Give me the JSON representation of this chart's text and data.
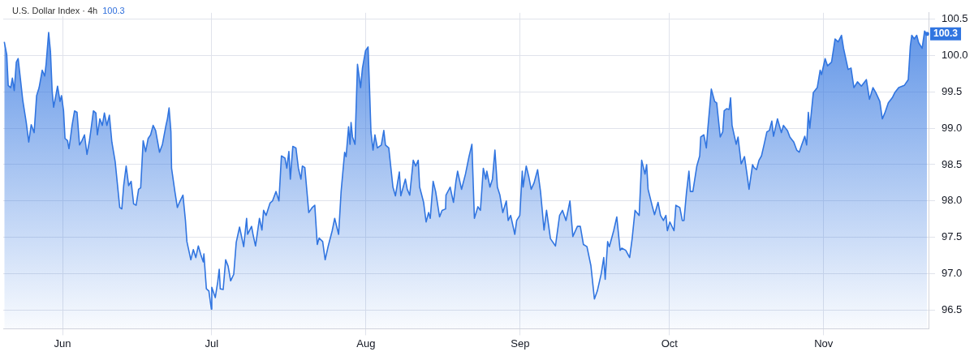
{
  "chart_data": {
    "type": "area",
    "title": "U.S. Dollar Index · 4h",
    "annotations": [
      "100.3",
      {
        "text": "100.3",
        "x": "--11-21T19:00",
        "y": 100.3
      }
    ],
    "series": [
      {
        "color": "#3175e0",
        "x": [
          "--05-20T07:00",
          "--05-20T19:00",
          "--05-21T02:00",
          "--05-21T14:00",
          "--05-21T22:00",
          "--05-22T07:00",
          "--05-22T17:00",
          "--05-23T02:00",
          "--05-23T14:00",
          "--05-24T00:00",
          "--05-24T17:00",
          "--05-25T05:00",
          "--05-25T17:00",
          "--05-26T07:00",
          "--05-26T19:00",
          "--05-27T07:00",
          "--05-27T22:00",
          "--05-28T10:00",
          "--05-28T17:00",
          "--05-29T05:00",
          "--05-29T14:00",
          "--05-29T22:00",
          "--05-30T05:00",
          "--05-30T17:00",
          "--05-31T00:00",
          "--05-31T12:00",
          "--05-31T19:00",
          "--06-01T05:00",
          "--06-01T12:00",
          "--06-02T00:00",
          "--06-02T07:00",
          "--06-02T14:00",
          "--06-02T22:00",
          "--06-03T10:00",
          "--06-03T22:00",
          "--06-04T10:00",
          "--06-04T22:00",
          "--06-05T10:00",
          "--06-05T22:00",
          "--06-06T10:00",
          "--06-06T19:00",
          "--06-07T05:00",
          "--06-07T17:00",
          "--06-08T00:00",
          "--06-08T12:00",
          "--06-09T00:00",
          "--06-09T10:00",
          "--06-09T22:00",
          "--06-10T10:00",
          "--06-10T22:00",
          "--06-11T14:00",
          "--06-12T12:00",
          "--06-12T22:00",
          "--06-13T07:00",
          "--06-13T19:00",
          "--06-14T07:00",
          "--06-14T19:00",
          "--06-15T07:00",
          "--06-15T19:00",
          "--06-16T07:00",
          "--06-16T17:00",
          "--06-17T05:00",
          "--06-17T17:00",
          "--06-18T05:00",
          "--06-18T17:00",
          "--06-19T05:00",
          "--06-19T17:00",
          "--06-20T12:00",
          "--06-21T02:00",
          "--06-21T19:00",
          "--06-22T02:00",
          "--06-22T10:00",
          "--06-22T19:00",
          "--06-22T22:00",
          "--06-23T14:00",
          "--06-24T02:00",
          "--06-24T12:00",
          "--06-25T05:00",
          "--06-25T17:00",
          "--06-26T00:00",
          "--06-26T19:00",
          "--06-27T07:00",
          "--06-27T19:00",
          "--06-28T07:00",
          "--06-28T19:00",
          "--06-29T07:00",
          "--06-29T10:00",
          "--06-29T22:00",
          "--06-30T10:00",
          "--06-30T22:00",
          "--07-01T00:00",
          "--07-01T17:00",
          "--07-02T05:00",
          "--07-02T12:00",
          "--07-02T17:00",
          "--07-03T07:00",
          "--07-03T19:00",
          "--07-04T07:00",
          "--07-04T19:00",
          "--07-05T10:00",
          "--07-05T22:00",
          "--07-06T14:00",
          "--07-07T10:00",
          "--07-08T00:00",
          "--07-08T05:00",
          "--07-09T00:00",
          "--07-09T07:00",
          "--07-09T19:00",
          "--07-10T14:00",
          "--07-11T02:00",
          "--07-11T10:00",
          "--07-11T22:00",
          "--07-12T17:00",
          "--07-13T05:00",
          "--07-13T22:00",
          "--07-14T12:00",
          "--07-15T00:00",
          "--07-15T17:00",
          "--07-16T02:00",
          "--07-16T12:00",
          "--07-16T19:00",
          "--07-17T07:00",
          "--07-17T22:00",
          "--07-18T10:00",
          "--07-18T22:00",
          "--07-19T05:00",
          "--07-19T17:00",
          "--07-20T12:00",
          "--07-21T05:00",
          "--07-21T17:00",
          "--07-22T05:00",
          "--07-22T14:00",
          "--07-23T07:00",
          "--07-23T19:00",
          "--07-24T10:00",
          "--07-25T05:00",
          "--07-25T17:00",
          "--07-26T12:00",
          "--07-27T00:00",
          "--07-27T17:00",
          "--07-28T00:00",
          "--07-28T12:00",
          "--07-28T19:00",
          "--07-29T00:00",
          "--07-29T07:00",
          "--07-29T19:00",
          "--07-30T07:00",
          "--07-30T22:00",
          "--07-31T07:00",
          "--07-31T22:00",
          "--08-01T10:00",
          "--08-01T17:00",
          "--08-02T00:00",
          "--08-02T10:00",
          "--08-02T19:00",
          "--08-03T07:00",
          "--08-04T02:00",
          "--08-04T14:00",
          "--08-04T22:00",
          "--08-05T14:00",
          "--08-06T10:00",
          "--08-06T22:00",
          "--08-07T17:00",
          "--08-08T00:00",
          "--08-08T22:00",
          "--08-09T07:00",
          "--08-09T19:00",
          "--08-10T12:00",
          "--08-11T00:00",
          "--08-11T12:00",
          "--08-11T19:00",
          "--08-12T14:00",
          "--08-13T02:00",
          "--08-13T14:00",
          "--08-13T22:00",
          "--08-14T12:00",
          "--08-15T00:00",
          "--08-15T19:00",
          "--08-16T07:00",
          "--08-17T00:00",
          "--08-17T02:00",
          "--08-17T22:00",
          "--08-18T14:00",
          "--08-19T02:00",
          "--08-19T10:00",
          "--08-20T05:00",
          "--08-21T00:00",
          "--08-21T17:00",
          "--08-22T07:00",
          "--08-22T19:00",
          "--08-23T12:00",
          "--08-24T00:00",
          "--08-24T14:00",
          "--08-25T02:00",
          "--08-25T07:00",
          "--08-25T22:00",
          "--08-26T10:00",
          "--08-26T22:00",
          "--08-27T10:00",
          "--08-27T22:00",
          "--08-28T12:00",
          "--08-29T05:00",
          "--08-29T14:00",
          "--08-30T02:00",
          "--08-30T22:00",
          "--08-31T07:00",
          "--08-31T22:00",
          "--09-01T10:00",
          "--09-01T14:00",
          "--09-02T05:00",
          "--09-02T17:00",
          "--09-03T05:00",
          "--09-03T19:00",
          "--09-04T12:00",
          "--09-05T02:00",
          "--09-05T19:00",
          "--09-06T07:00",
          "--09-07T02:00",
          "--09-08T02:00",
          "--09-08T22:00",
          "--09-09T12:00",
          "--09-10T05:00",
          "--09-11T00:00",
          "--09-11T14:00",
          "--09-12T12:00",
          "--09-13T02:00",
          "--09-13T17:00",
          "--09-14T10:00",
          "--09-15T05:00",
          "--09-15T22:00",
          "--09-16T12:00",
          "--09-17T07:00",
          "--09-17T19:00",
          "--09-18T02:00",
          "--09-18T14:00",
          "--09-18T22:00",
          "--09-19T19:00",
          "--09-20T10:00",
          "--09-21T02:00",
          "--09-21T10:00",
          "--09-22T05:00",
          "--09-23T00:00",
          "--09-23T12:00",
          "--09-24T02:00",
          "--09-24T22:00",
          "--09-25T10:00",
          "--09-26T02:00",
          "--09-26T10:00",
          "--09-26T17:00",
          "--09-27T12:00",
          "--09-28T00:00",
          "--09-28T17:00",
          "--09-29T05:00",
          "--09-29T19:00",
          "--09-30T07:00",
          "--09-30T14:00",
          "--10-01T02:00",
          "--10-01T22:00",
          "--10-02T07:00",
          "--10-03T02:00",
          "--10-03T14:00",
          "--10-03T22:00",
          "--10-04T10:00",
          "--10-04T22:00",
          "--10-05T05:00",
          "--10-05T17:00",
          "--10-06T12:00",
          "--10-07T02:00",
          "--10-07T07:00",
          "--10-07T22:00",
          "--10-08T10:00",
          "--10-08T17:00",
          "--10-09T10:00",
          "--10-10T02:00",
          "--10-10T12:00",
          "--10-11T05:00",
          "--10-11T17:00",
          "--10-12T00:00",
          "--10-12T12:00",
          "--10-13T00:00",
          "--10-13T07:00",
          "--10-13T14:00",
          "--10-14T10:00",
          "--10-14T19:00",
          "--10-15T10:00",
          "--10-16T02:00",
          "--10-16T14:00",
          "--10-17T00:00",
          "--10-17T17:00",
          "--10-18T00:00",
          "--10-18T12:00",
          "--10-19T00:00",
          "--10-19T12:00",
          "--10-20T00:00",
          "--10-20T14:00",
          "--10-21T02:00",
          "--10-21T14:00",
          "--10-21T22:00",
          "--10-22T17:00",
          "--10-23T12:00",
          "--10-23T22:00",
          "--10-24T17:00",
          "--10-25T05:00",
          "--10-26T00:00",
          "--10-26T14:00",
          "--10-27T02:00",
          "--10-27T14:00",
          "--10-28T05:00",
          "--10-28T14:00",
          "--10-28T22:00",
          "--10-29T05:00",
          "--10-29T22:00",
          "--10-30T17:00",
          "--10-31T07:00",
          "--10-31T14:00",
          "--11-01T07:00",
          "--11-01T19:00",
          "--11-02T14:00",
          "--11-03T07:00",
          "--11-03T22:00",
          "--11-04T14:00",
          "--11-05T00:00",
          "--11-05T22:00",
          "--11-06T12:00",
          "--11-07T02:00",
          "--11-07T19:00",
          "--11-08T14:00",
          "--11-09T14:00",
          "--11-10T05:00",
          "--11-10T22:00",
          "--11-11T12:00",
          "--11-12T07:00",
          "--11-12T19:00",
          "--11-13T07:00",
          "--11-14T00:00",
          "--11-14T19:00",
          "--11-15T07:00",
          "--11-16T02:00",
          "--11-17T05:00",
          "--11-18T00:00",
          "--11-18T10:00",
          "--11-18T17:00",
          "--11-19T05:00",
          "--11-19T17:00",
          "--11-20T02:00",
          "--11-20T19:00",
          "--11-21T07:00",
          "--11-21T19:00"
        ],
        "values": [
          100.19,
          100.01,
          99.59,
          99.56,
          99.69,
          99.52,
          99.91,
          99.96,
          99.65,
          99.39,
          99.08,
          98.81,
          99.05,
          98.94,
          99.45,
          99.56,
          99.8,
          99.72,
          99.89,
          100.32,
          100.05,
          99.51,
          99.29,
          99.47,
          99.58,
          99.37,
          99.45,
          99.24,
          98.86,
          98.83,
          98.72,
          98.86,
          99.04,
          99.24,
          99.22,
          98.77,
          98.83,
          98.91,
          98.64,
          98.83,
          99.02,
          99.24,
          99.21,
          98.91,
          99.13,
          99.04,
          99.21,
          99.04,
          99.18,
          98.81,
          98.54,
          97.91,
          97.89,
          98.21,
          98.48,
          98.21,
          98.27,
          97.96,
          97.94,
          98.16,
          98.18,
          98.83,
          98.68,
          98.86,
          98.91,
          99.04,
          98.97,
          98.67,
          98.78,
          99.04,
          99.13,
          99.28,
          98.95,
          98.45,
          98.13,
          97.91,
          97.98,
          98.08,
          97.73,
          97.44,
          97.19,
          97.33,
          97.22,
          97.38,
          97.26,
          97.16,
          97.27,
          96.79,
          96.76,
          96.51,
          96.81,
          96.67,
          96.89,
          97.06,
          96.79,
          96.78,
          97.19,
          97.1,
          96.9,
          96.99,
          97.43,
          97.64,
          97.37,
          97.76,
          97.54,
          97.65,
          97.54,
          97.38,
          97.76,
          97.6,
          97.87,
          97.8,
          97.97,
          98.0,
          98.13,
          98.0,
          98.62,
          98.59,
          98.45,
          98.68,
          98.3,
          98.75,
          98.73,
          98.45,
          98.3,
          98.48,
          98.46,
          97.84,
          97.91,
          97.94,
          97.4,
          97.49,
          97.44,
          97.19,
          97.38,
          97.59,
          97.76,
          97.54,
          98.13,
          98.67,
          98.61,
          99.02,
          98.78,
          99.08,
          98.88,
          98.78,
          99.88,
          99.56,
          99.83,
          100.07,
          100.12,
          99.56,
          98.95,
          98.7,
          98.91,
          98.73,
          98.77,
          98.97,
          98.77,
          98.73,
          98.19,
          98.07,
          98.4,
          98.07,
          98.3,
          98.16,
          98.08,
          98.56,
          98.48,
          98.56,
          98.19,
          97.98,
          97.71,
          97.84,
          97.76,
          98.27,
          98.13,
          97.78,
          97.87,
          97.89,
          98.08,
          98.19,
          97.98,
          98.27,
          98.41,
          98.16,
          98.37,
          98.61,
          98.78,
          97.76,
          97.92,
          97.87,
          98.45,
          98.3,
          98.41,
          98.19,
          98.3,
          98.7,
          98.19,
          98.08,
          97.84,
          98.0,
          97.73,
          97.8,
          97.54,
          97.73,
          97.8,
          98.41,
          98.19,
          98.48,
          98.34,
          98.16,
          98.25,
          98.43,
          98.13,
          97.6,
          97.87,
          97.48,
          97.38,
          97.8,
          97.87,
          97.73,
          98.0,
          97.51,
          97.65,
          97.65,
          97.4,
          97.37,
          97.11,
          96.65,
          96.76,
          97.0,
          97.22,
          96.92,
          97.44,
          97.37,
          97.59,
          97.78,
          97.32,
          97.35,
          97.32,
          97.22,
          97.48,
          97.87,
          97.8,
          98.56,
          98.37,
          98.5,
          98.16,
          97.94,
          97.81,
          97.98,
          97.8,
          97.73,
          97.8,
          97.59,
          97.71,
          97.59,
          97.94,
          97.91,
          97.73,
          97.73,
          98.11,
          98.41,
          98.13,
          98.13,
          98.48,
          98.62,
          98.88,
          98.91,
          98.73,
          98.99,
          99.54,
          99.37,
          99.35,
          98.88,
          98.95,
          99.24,
          99.27,
          99.26,
          99.42,
          99.04,
          98.78,
          98.88,
          98.51,
          98.61,
          98.37,
          98.16,
          98.5,
          98.46,
          98.43,
          98.56,
          98.62,
          98.77,
          98.95,
          98.97,
          99.1,
          98.89,
          99.13,
          98.94,
          99.04,
          98.97,
          98.88,
          98.81,
          98.7,
          98.67,
          98.77,
          98.89,
          98.77,
          99.22,
          99.0,
          99.49,
          99.56,
          99.8,
          99.74,
          99.96,
          99.86,
          99.91,
          100.23,
          100.19,
          100.28,
          100.1,
          99.81,
          99.83,
          99.56,
          99.64,
          99.58,
          99.67,
          99.4,
          99.56,
          99.49,
          99.37,
          99.13,
          99.21,
          99.35,
          99.42,
          99.49,
          99.56,
          99.59,
          99.67,
          100.13,
          100.28,
          100.23,
          100.28,
          100.18,
          100.1,
          100.34,
          100.28
        ]
      }
    ],
    "xlim": [
      "--05-20T02:00",
      "--11-22T02:00"
    ],
    "xticks": [
      {
        "value": "--06-01",
        "label": "Jun"
      },
      {
        "value": "--07-01",
        "label": "Jul"
      },
      {
        "value": "--08-01",
        "label": "Aug"
      },
      {
        "value": "--09-01",
        "label": "Sep"
      },
      {
        "value": "--10-01",
        "label": "Oct"
      },
      {
        "value": "--11-01",
        "label": "Nov"
      }
    ],
    "ylim": [
      96.24,
      100.59
    ],
    "yticks": [
      {
        "value": 96.5,
        "label": "96.5"
      },
      {
        "value": 97,
        "label": "97.0"
      },
      {
        "value": 97.5,
        "label": "97.5"
      },
      {
        "value": 98,
        "label": "98.0"
      },
      {
        "value": 98.5,
        "label": "98.5"
      },
      {
        "value": 99,
        "label": "99.0"
      },
      {
        "value": 99.5,
        "label": "99.5"
      },
      {
        "value": 100,
        "label": "100.0"
      },
      {
        "value": 100.5,
        "label": "100.5"
      }
    ],
    "grid": true
  }
}
